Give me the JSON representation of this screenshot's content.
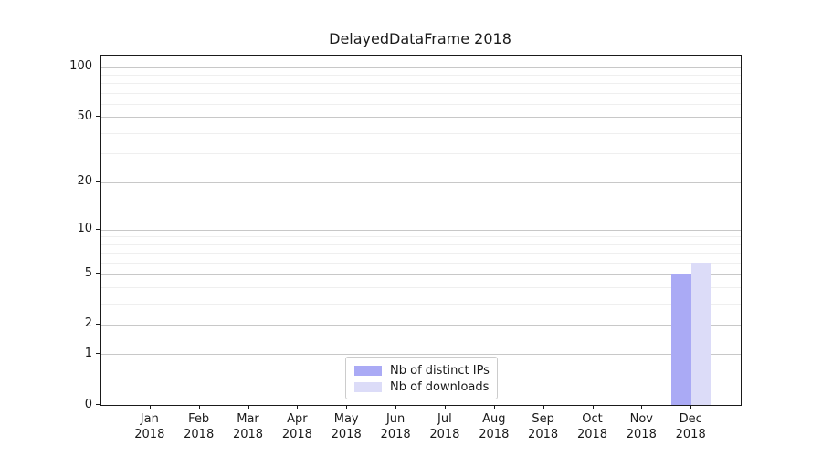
{
  "title": "DelayedDataFrame 2018",
  "chart_data": {
    "type": "bar",
    "title": "DelayedDataFrame 2018",
    "categories": [
      "Jan 2018",
      "Feb 2018",
      "Mar 2018",
      "Apr 2018",
      "May 2018",
      "Jun 2018",
      "Jul 2018",
      "Aug 2018",
      "Sep 2018",
      "Oct 2018",
      "Nov 2018",
      "Dec 2018"
    ],
    "series": [
      {
        "name": "Nb of distinct IPs",
        "color": "#aaaaf5",
        "values": [
          0,
          0,
          0,
          0,
          0,
          0,
          0,
          0,
          0,
          0,
          0,
          5
        ]
      },
      {
        "name": "Nb of downloads",
        "color": "#dcdcf8",
        "values": [
          0,
          0,
          0,
          0,
          0,
          0,
          0,
          0,
          0,
          0,
          0,
          6
        ]
      }
    ],
    "xlabel": "",
    "ylabel": "",
    "yscale": "log1p",
    "ylim": [
      0,
      117
    ],
    "y_major_ticks": [
      0,
      1,
      2,
      5,
      10,
      20,
      50,
      100
    ],
    "y_minor_ticks": [
      3,
      4,
      6,
      7,
      8,
      9,
      30,
      40,
      60,
      70,
      80,
      90
    ],
    "grid": "both",
    "legend_position": "lower-center",
    "frame_color": "#1a1a1a",
    "grid_major_color": "#c8c8c8",
    "grid_minor_color": "#efefef"
  }
}
